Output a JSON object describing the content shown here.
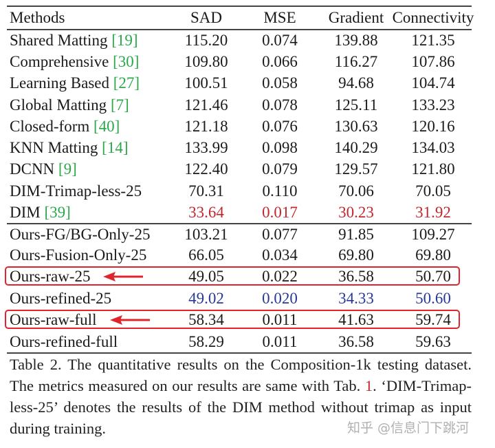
{
  "table": {
    "headers": [
      "Methods",
      "SAD",
      "MSE",
      "Gradient",
      "Connectivity"
    ],
    "rows": [
      {
        "method": "Shared Matting",
        "cite": "[19]",
        "sad": "115.20",
        "mse": "0.074",
        "gradient": "139.88",
        "connectivity": "121.35"
      },
      {
        "method": "Comprehensive",
        "cite": "[30]",
        "sad": "109.80",
        "mse": "0.066",
        "gradient": "116.27",
        "connectivity": "107.86"
      },
      {
        "method": "Learning Based",
        "cite": "[27]",
        "sad": "100.51",
        "mse": "0.058",
        "gradient": "94.68",
        "connectivity": "104.74"
      },
      {
        "method": "Global Matting",
        "cite": "[7]",
        "sad": "121.46",
        "mse": "0.078",
        "gradient": "125.11",
        "connectivity": "133.23"
      },
      {
        "method": "Closed-form",
        "cite": "[40]",
        "sad": "121.18",
        "mse": "0.076",
        "gradient": "130.63",
        "connectivity": "120.16"
      },
      {
        "method": "KNN Matting",
        "cite": "[14]",
        "sad": "133.99",
        "mse": "0.098",
        "gradient": "140.29",
        "connectivity": "134.03"
      },
      {
        "method": "DCNN",
        "cite": "[9]",
        "sad": "122.40",
        "mse": "0.079",
        "gradient": "129.57",
        "connectivity": "121.80"
      },
      {
        "method": "DIM-Trimap-less-25",
        "cite": "",
        "sad": "70.31",
        "mse": "0.110",
        "gradient": "70.06",
        "connectivity": "70.05"
      },
      {
        "method": "DIM",
        "cite": "[39]",
        "sad": "33.64",
        "mse": "0.017",
        "gradient": "30.23",
        "connectivity": "31.92",
        "value_color": "red"
      },
      {
        "method": "Ours-FG/BG-Only-25",
        "cite": "",
        "sad": "103.21",
        "mse": "0.077",
        "gradient": "91.85",
        "connectivity": "109.27"
      },
      {
        "method": "Ours-Fusion-Only-25",
        "cite": "",
        "sad": "66.05",
        "mse": "0.034",
        "gradient": "69.80",
        "connectivity": "69.80"
      },
      {
        "method": "Ours-raw-25",
        "cite": "",
        "sad": "49.05",
        "mse": "0.022",
        "gradient": "36.58",
        "connectivity": "50.70",
        "highlighted": true
      },
      {
        "method": "Ours-refined-25",
        "cite": "",
        "sad": "49.02",
        "mse": "0.020",
        "gradient": "34.33",
        "connectivity": "50.60",
        "value_color": "blue"
      },
      {
        "method": "Ours-raw-full",
        "cite": "",
        "sad": "58.34",
        "mse": "0.011",
        "gradient": "41.63",
        "connectivity": "59.74",
        "highlighted": true
      },
      {
        "method": "Ours-refined-full",
        "cite": "",
        "sad": "58.29",
        "mse": "0.011",
        "gradient": "36.58",
        "connectivity": "59.63"
      }
    ]
  },
  "caption": {
    "part1": "Table 2. The quantitative results on the Composition-1k testing dataset.  The metrics measured on our results are same with Tab.",
    "ref": "1",
    "part2": ".  ‘DIM-Trimap-less-25’ denotes the results of the DIM method without trimap as input during training."
  },
  "watermark": "知乎 @信息门下跳河",
  "colors": {
    "citation": "#2aa84a",
    "best": "#c0282d",
    "second": "#27389a",
    "highlight_box": "#e0242c"
  }
}
